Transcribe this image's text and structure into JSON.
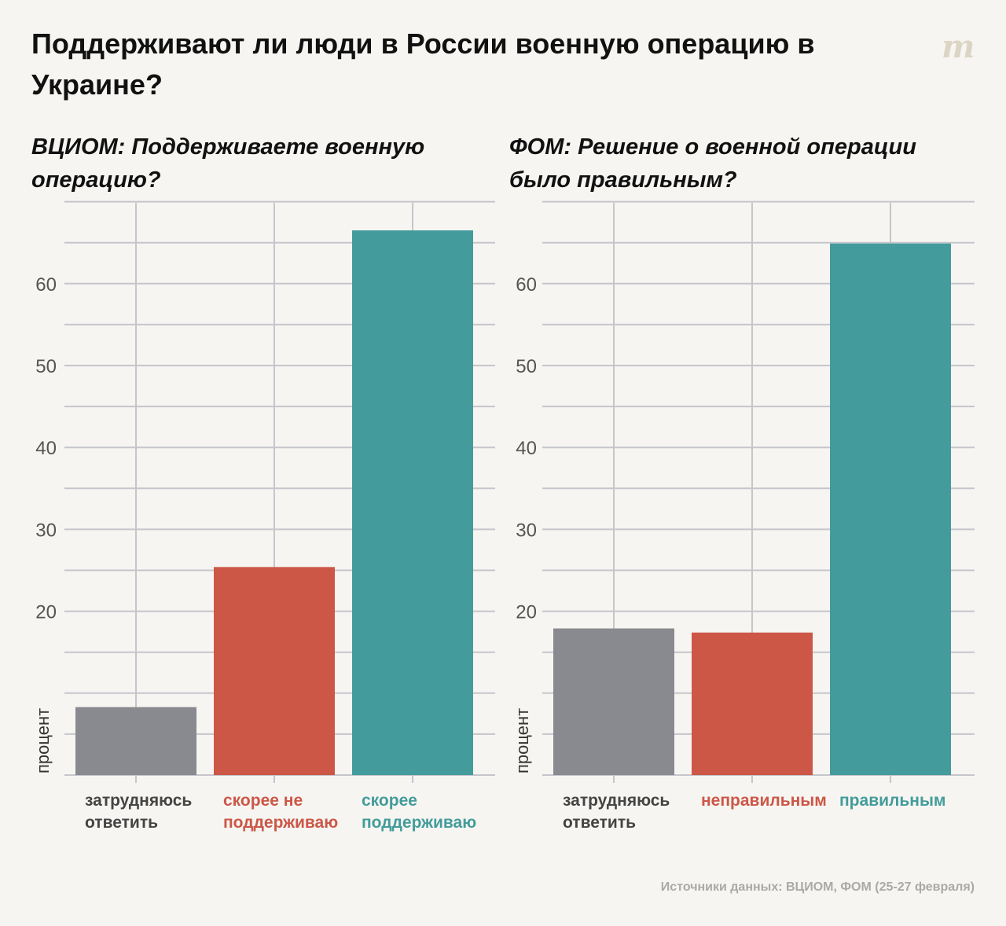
{
  "title": "Поддерживают ли люди в России военную операцию в Украине?",
  "logo": "m",
  "source": "Источники данных: ВЦИОМ, ФОМ (25-27 февраля)",
  "colors": {
    "background": "#f6f5f1",
    "grid": "#c5c5cc",
    "gray": "#898a8f",
    "red": "#cc5747",
    "teal": "#439c9b",
    "tick_text": "#555555"
  },
  "chart_data": [
    {
      "type": "bar",
      "title": "ВЦИОМ: Поддерживаете военную операцию?",
      "ylabel": "процент",
      "ylim": [
        0,
        70
      ],
      "yticks": [
        20,
        30,
        40,
        50,
        60
      ],
      "grid": true,
      "categories": [
        "затрудняюсь ответить",
        "скорее не поддерживаю",
        "скорее поддерживаю"
      ],
      "category_lines": [
        [
          "затрудняюсь",
          "ответить"
        ],
        [
          "скорее не",
          "поддерживаю"
        ],
        [
          "скорее",
          "поддерживаю"
        ]
      ],
      "values": [
        8.3,
        25.4,
        66.5
      ],
      "bar_colors": [
        "gray",
        "red",
        "teal"
      ]
    },
    {
      "type": "bar",
      "title": "ФОМ: Решение о военной операции было правильным?",
      "ylabel": "процент",
      "ylim": [
        0,
        70
      ],
      "yticks": [
        20,
        30,
        40,
        50,
        60
      ],
      "grid": true,
      "categories": [
        "затрудняюсь ответить",
        "неправильным",
        "правильным"
      ],
      "category_lines": [
        [
          "затрудняюсь",
          "ответить"
        ],
        [
          "неправильным"
        ],
        [
          "правильным"
        ]
      ],
      "values": [
        17.9,
        17.4,
        64.9
      ],
      "bar_colors": [
        "gray",
        "red",
        "teal"
      ]
    }
  ]
}
